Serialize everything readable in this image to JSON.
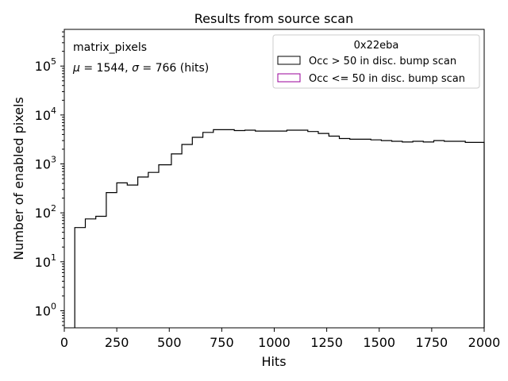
{
  "chart_data": {
    "type": "histogram",
    "title": "Results from source scan",
    "xlabel": "Hits",
    "ylabel": "Number of enabled pixels",
    "xlim": [
      0,
      2000
    ],
    "ylim_log10": [
      -0.35,
      5.75
    ],
    "yscale": "log",
    "x_ticks": [
      0,
      250,
      500,
      750,
      1000,
      1250,
      1500,
      1750,
      2000
    ],
    "y_ticks": [
      {
        "value": 1,
        "base": "10",
        "exp": "0"
      },
      {
        "value": 10,
        "base": "10",
        "exp": "1"
      },
      {
        "value": 100,
        "base": "10",
        "exp": "2"
      },
      {
        "value": 1000,
        "base": "10",
        "exp": "3"
      },
      {
        "value": 10000,
        "base": "10",
        "exp": "4"
      },
      {
        "value": 100000,
        "base": "10",
        "exp": "5"
      }
    ],
    "annotation_name": "matrix_pixels",
    "annotation_stats": {
      "mu_symbol": "μ",
      "mu_text": " = 1544, ",
      "sigma_symbol": "σ",
      "sigma_text": " = 766 (hits)"
    },
    "legend": {
      "title": "0x22eba",
      "placement": "top-right",
      "entries": [
        {
          "label": "Occ > 50 in disc. bump scan",
          "color": "#000000"
        },
        {
          "label": "Occ <= 50 in disc. bump scan",
          "color": "#990099"
        }
      ]
    },
    "series": [
      {
        "name": "Occ > 50 in disc. bump scan",
        "color": "#000000",
        "bin_edges": [
          50,
          100,
          150,
          200,
          250,
          300,
          350,
          400,
          450,
          510,
          560,
          610,
          660,
          710,
          810,
          860,
          910,
          1060,
          1160,
          1210,
          1260,
          1310,
          1360,
          1460,
          1510,
          1560,
          1610,
          1660,
          1710,
          1760,
          1810,
          1910,
          2000
        ],
        "values": [
          50,
          75,
          85,
          260,
          410,
          370,
          540,
          670,
          960,
          1600,
          2500,
          3500,
          4400,
          5000,
          4800,
          4900,
          4700,
          4900,
          4600,
          4200,
          3700,
          3300,
          3200,
          3100,
          3000,
          2900,
          2800,
          2900,
          2800,
          3000,
          2900,
          2750
        ]
      }
    ]
  }
}
